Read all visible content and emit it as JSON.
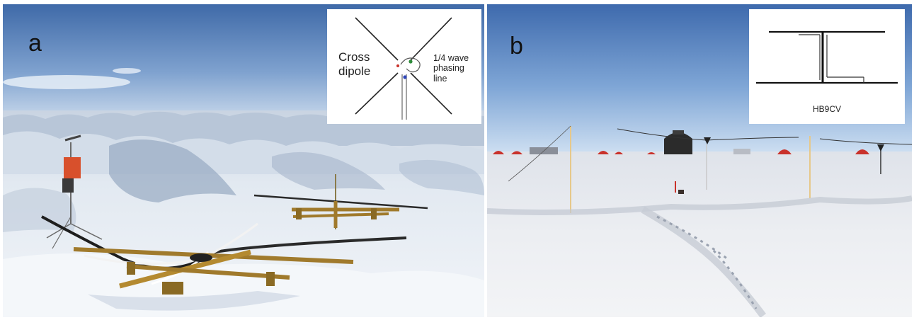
{
  "panels": [
    {
      "id": "a",
      "label": "a",
      "inset": {
        "title": "Cross dipole",
        "annotation": "1/4 wave phasing line"
      }
    },
    {
      "id": "b",
      "label": "b",
      "inset": {
        "caption": "HB9CV"
      }
    }
  ],
  "colors": {
    "sky_top": "#4a76b3",
    "sky_bottom": "#c9dbee",
    "snow": "#eef2f6",
    "snow_shadow": "#a9b8cc",
    "tent_red": "#c9322b",
    "wood": "#a07a2c",
    "logger_orange": "#d8502c"
  }
}
